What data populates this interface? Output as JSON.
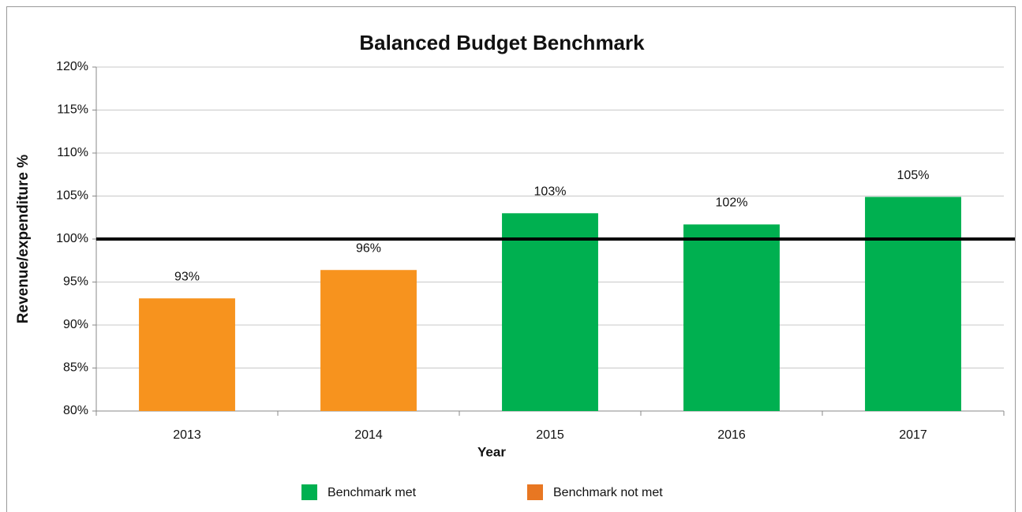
{
  "chart_data": {
    "type": "bar",
    "title": "Balanced Budget Benchmark",
    "x_label": "Year",
    "y_label": "Revenue/expenditure  %",
    "categories": [
      "2013",
      "2014",
      "2015",
      "2016",
      "2017"
    ],
    "values": [
      93.1,
      96.4,
      103,
      101.7,
      104.9
    ],
    "value_labels": [
      "93%",
      "96%",
      "103%",
      "102%",
      "105%"
    ],
    "colors": [
      "#f7931e",
      "#f7931e",
      "#00b050",
      "#00b050",
      "#00b050"
    ],
    "reference_line": 100,
    "ylim": [
      80,
      120
    ],
    "yticks": [
      {
        "value": 80,
        "label": "80%"
      },
      {
        "value": 85,
        "label": "85%"
      },
      {
        "value": 90,
        "label": "90%"
      },
      {
        "value": 95,
        "label": "95%"
      },
      {
        "value": 100,
        "label": "100%"
      },
      {
        "value": 105,
        "label": "105%"
      },
      {
        "value": 110,
        "label": "110%"
      },
      {
        "value": 115,
        "label": "115%"
      },
      {
        "value": 120,
        "label": "120%"
      }
    ],
    "grid": true,
    "legend": [
      {
        "name": "Benchmark met",
        "color": "#00b050"
      },
      {
        "name": "Benchmark not met",
        "color": "#e87722"
      }
    ]
  }
}
